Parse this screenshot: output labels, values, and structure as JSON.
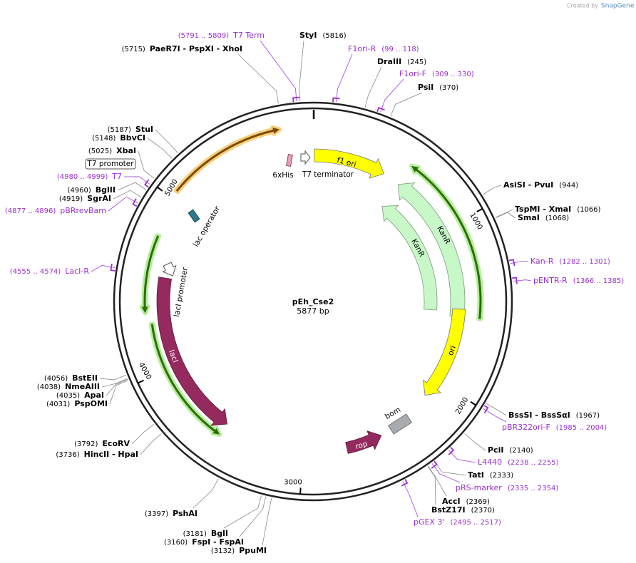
{
  "header": {
    "created_by": "Created by",
    "brand": "SnapGene"
  },
  "plasmid": {
    "name": "pEh_Cse2",
    "size": "5877 bp"
  },
  "ruler": [
    "1000",
    "2000",
    "3000",
    "4000",
    "5000"
  ],
  "enzymes": [
    {
      "name": "StyI",
      "position": "(5816)"
    },
    {
      "name": "PaeR7I - PspXI - XhoI",
      "position": "(5715)"
    },
    {
      "name": "DraIII",
      "position": "(245)"
    },
    {
      "name": "PsiI",
      "position": "(370)"
    },
    {
      "name": "AsiSI - PvuI",
      "position": "(944)"
    },
    {
      "name": "TspMI - XmaI",
      "position": "(1066)"
    },
    {
      "name": "SmaI",
      "position": "(1068)"
    },
    {
      "name": "BssSI - BssSαI",
      "position": "(1967)"
    },
    {
      "name": "PciI",
      "position": "(2140)"
    },
    {
      "name": "TatI",
      "position": "(2333)"
    },
    {
      "name": "AccI",
      "position": "(2369)"
    },
    {
      "name": "BstZ17I",
      "position": "(2370)"
    },
    {
      "name": "PpuMI",
      "position": "(3132)"
    },
    {
      "name": "FspI - FspAI",
      "position": "(3160)"
    },
    {
      "name": "BglI",
      "position": "(3181)"
    },
    {
      "name": "PshAI",
      "position": "(3397)"
    },
    {
      "name": "HincII - HpaI",
      "position": "(3736)"
    },
    {
      "name": "EcoRV",
      "position": "(3792)"
    },
    {
      "name": "PspOMI",
      "position": "(4031)"
    },
    {
      "name": "ApaI",
      "position": "(4035)"
    },
    {
      "name": "NmeAIII",
      "position": "(4038)"
    },
    {
      "name": "BstEII",
      "position": "(4056)"
    },
    {
      "name": "SgrAI",
      "position": "(4919)"
    },
    {
      "name": "BglII",
      "position": "(4960)"
    },
    {
      "name": "XbaI",
      "position": "(5025)"
    },
    {
      "name": "BbvCI",
      "position": "(5148)"
    },
    {
      "name": "StuI",
      "position": "(5187)"
    }
  ],
  "primers": [
    {
      "name": "T7 Term",
      "range": "(5791 .. 5809)"
    },
    {
      "name": "F1ori-R",
      "range": "(99 .. 118)"
    },
    {
      "name": "F1ori-F",
      "range": "(309 .. 330)"
    },
    {
      "name": "Kan-R",
      "range": "(1282 .. 1301)"
    },
    {
      "name": "pENTR-R",
      "range": "(1366 .. 1385)"
    },
    {
      "name": "pBR322ori-F",
      "range": "(1985 .. 2004)"
    },
    {
      "name": "L4440",
      "range": "(2238 .. 2255)"
    },
    {
      "name": "pRS-marker",
      "range": "(2335 .. 2354)"
    },
    {
      "name": "pGEX 3'",
      "range": "(2495 .. 2517)"
    },
    {
      "name": "LacI-R",
      "range": "(4555 .. 4574)"
    },
    {
      "name": "pBRrevBam",
      "range": "(4877 .. 4896)"
    },
    {
      "name": "T7",
      "range": "(4980 .. 4999)"
    }
  ],
  "features": [
    {
      "label": "f1 ori"
    },
    {
      "label": "KanR"
    },
    {
      "label": "KanR"
    },
    {
      "label": "ori"
    },
    {
      "label": "lacI"
    },
    {
      "label": "rop"
    },
    {
      "label": "bom"
    },
    {
      "label": "6xHis"
    },
    {
      "label": "T7 terminator"
    },
    {
      "label": "lac operator"
    },
    {
      "label": "lacI promoter"
    },
    {
      "label": "T7 promoter"
    }
  ]
}
